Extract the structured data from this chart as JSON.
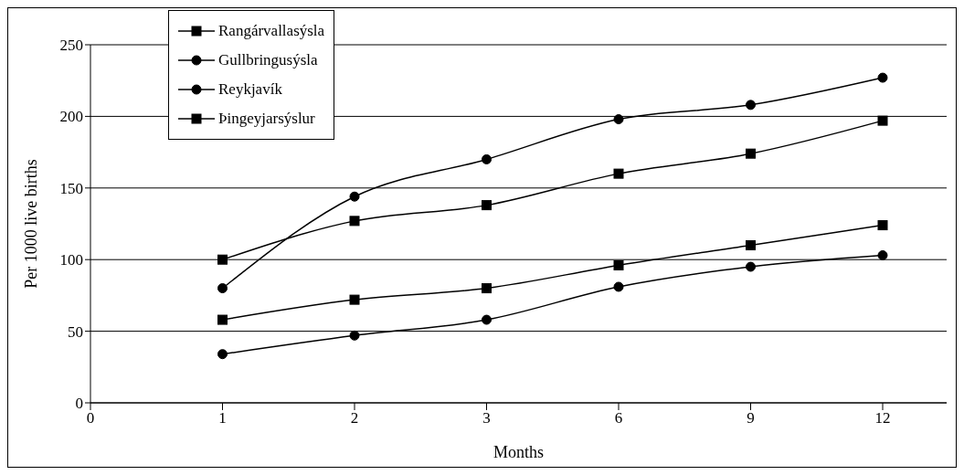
{
  "chart_data": {
    "type": "line",
    "xlabel": "Months",
    "ylabel": "Per 1000 live births",
    "categories": [
      "0",
      "1",
      "2",
      "3",
      "6",
      "9",
      "12"
    ],
    "series": [
      {
        "name": "Rangárvallasýsla",
        "color": "#000000",
        "marker": "square",
        "values": [
          null,
          100,
          127,
          138,
          160,
          174,
          197
        ]
      },
      {
        "name": "Gullbringusýsla",
        "color": "#000000",
        "marker": "circle",
        "values": [
          null,
          80,
          144,
          170,
          198,
          208,
          227
        ]
      },
      {
        "name": "Reykjavík",
        "color": "#000000",
        "marker": "circle",
        "values": [
          null,
          34,
          47,
          58,
          81,
          95,
          103
        ]
      },
      {
        "name": "Þingeyjarsýslur",
        "color": "#000000",
        "marker": "square",
        "values": [
          null,
          58,
          72,
          80,
          96,
          110,
          124
        ]
      }
    ],
    "ylim": [
      0,
      250
    ],
    "yticks": [
      0,
      50,
      100,
      150,
      200,
      250
    ],
    "grid": "y",
    "legend": "top left",
    "line_style": "solid"
  }
}
